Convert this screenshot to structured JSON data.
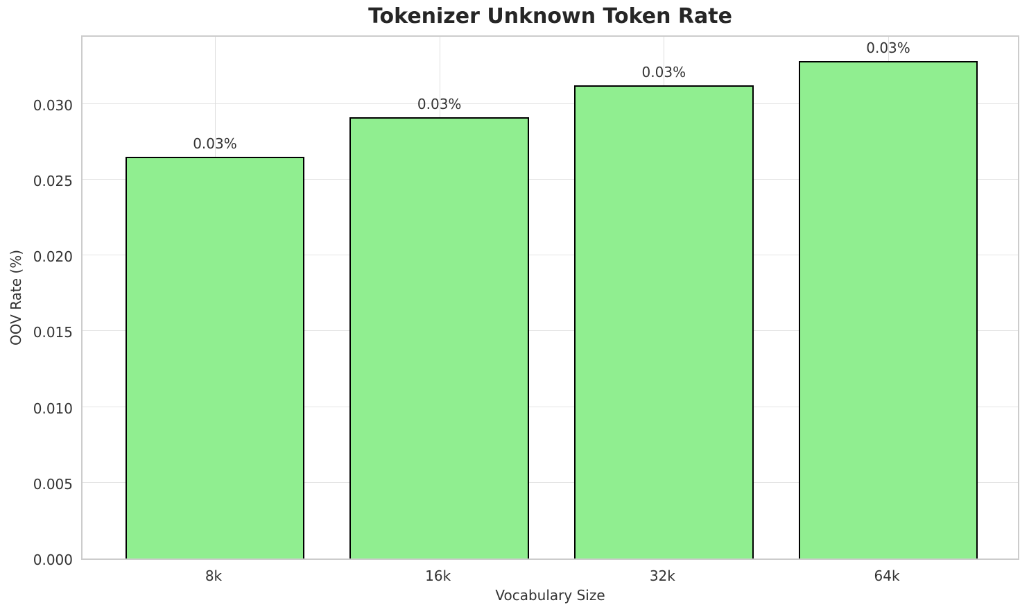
{
  "chart_data": {
    "type": "bar",
    "title": "Tokenizer Unknown Token Rate",
    "xlabel": "Vocabulary Size",
    "ylabel": "OOV Rate (%)",
    "categories": [
      "8k",
      "16k",
      "32k",
      "64k"
    ],
    "values": [
      0.0265,
      0.0291,
      0.0312,
      0.0328
    ],
    "bar_labels": [
      "0.03%",
      "0.03%",
      "0.03%",
      "0.03%"
    ],
    "ylim": [
      0,
      0.0346
    ],
    "yticks": [
      0,
      0.005,
      0.01,
      0.015,
      0.02,
      0.025,
      0.03
    ],
    "ytick_labels": [
      "0.000",
      "0.005",
      "0.010",
      "0.015",
      "0.020",
      "0.025",
      "0.030"
    ],
    "grid": true,
    "legend": null,
    "bar_color": "#90EE90",
    "bar_edge_color": "#000000",
    "grid_color": "#e4e4e4",
    "spine_color": "#cccccc",
    "text_color": "#333333",
    "title_color": "#262626",
    "background_color": "#ffffff"
  }
}
